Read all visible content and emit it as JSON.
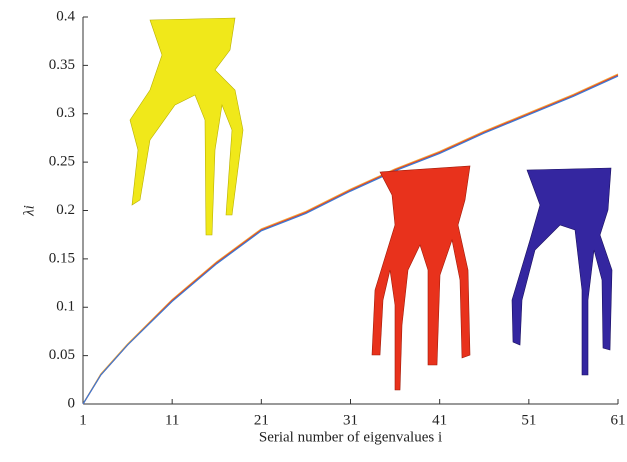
{
  "chart_data": {
    "type": "line",
    "x_label": "Serial number of eigenvalues i",
    "y_label": "λi",
    "x": [
      1,
      3,
      6,
      11,
      16,
      21,
      26,
      31,
      36,
      41,
      46,
      51,
      56,
      61
    ],
    "series": [
      {
        "color": "#f2a93b",
        "values": [
          0,
          0.031,
          0.062,
          0.108,
          0.147,
          0.181,
          0.199,
          0.222,
          0.243,
          0.261,
          0.282,
          0.301,
          0.32,
          0.341
        ]
      },
      {
        "color": "#e0402a",
        "values": [
          0,
          0.03,
          0.061,
          0.107,
          0.146,
          0.18,
          0.198,
          0.221,
          0.242,
          0.26,
          0.281,
          0.3,
          0.319,
          0.34
        ]
      },
      {
        "color": "#3a7bd5",
        "values": [
          0,
          0.03,
          0.061,
          0.106,
          0.145,
          0.179,
          0.197,
          0.22,
          0.241,
          0.259,
          0.28,
          0.299,
          0.318,
          0.339
        ]
      }
    ],
    "xlim": [
      1,
      61
    ],
    "xticks": [
      1,
      11,
      21,
      31,
      41,
      51,
      61
    ],
    "ylim": [
      0,
      0.4
    ],
    "yticks": [
      0,
      0.05,
      0.1,
      0.15,
      0.2,
      0.25,
      0.3,
      0.35,
      0.4
    ]
  }
}
